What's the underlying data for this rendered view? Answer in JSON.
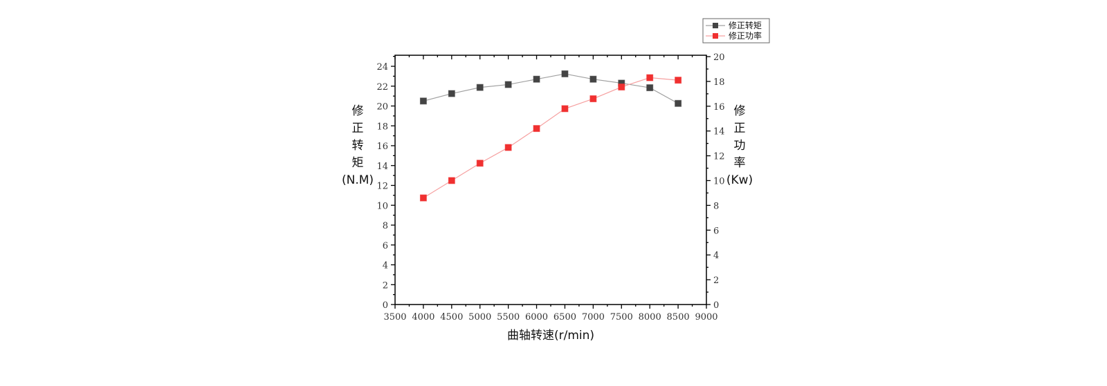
{
  "chart_data": {
    "type": "line",
    "title": "",
    "xlabel": "曲轴转速(r/min)",
    "ylabel_left": [
      "修",
      "正",
      "转",
      "矩",
      "(N.M)"
    ],
    "ylabel_right": [
      "修",
      "正",
      "功",
      "率",
      "(Kw)"
    ],
    "xlim": [
      3500,
      9000
    ],
    "ylim_left": [
      0,
      25
    ],
    "ylim_right": [
      0,
      20
    ],
    "x_ticks": [
      3500,
      4000,
      4500,
      5000,
      5500,
      6000,
      6500,
      7000,
      7500,
      8000,
      8500,
      9000
    ],
    "y_left_ticks": [
      0,
      2,
      4,
      6,
      8,
      10,
      12,
      14,
      16,
      18,
      20,
      22,
      24
    ],
    "y_right_ticks": [
      0,
      2,
      4,
      6,
      8,
      10,
      12,
      14,
      16,
      18,
      20
    ],
    "grid": false,
    "legend_position": "top-right",
    "x": [
      4000,
      4500,
      5000,
      5500,
      6000,
      6500,
      7000,
      7500,
      8000,
      8500
    ],
    "series": [
      {
        "name": "修正转矩",
        "axis": "left",
        "marker_color": "#444444",
        "line_color": "#a0a0a0",
        "values": [
          20.5,
          21.25,
          21.87,
          22.16,
          22.7,
          23.24,
          22.7,
          22.3,
          21.84,
          20.26
        ]
      },
      {
        "name": "修正功率",
        "axis": "right",
        "marker_color": "#f03030",
        "line_color": "#f6a0a0",
        "values": [
          8.6,
          10.0,
          11.4,
          12.67,
          14.2,
          15.8,
          16.6,
          17.55,
          18.3,
          18.1
        ]
      }
    ]
  }
}
